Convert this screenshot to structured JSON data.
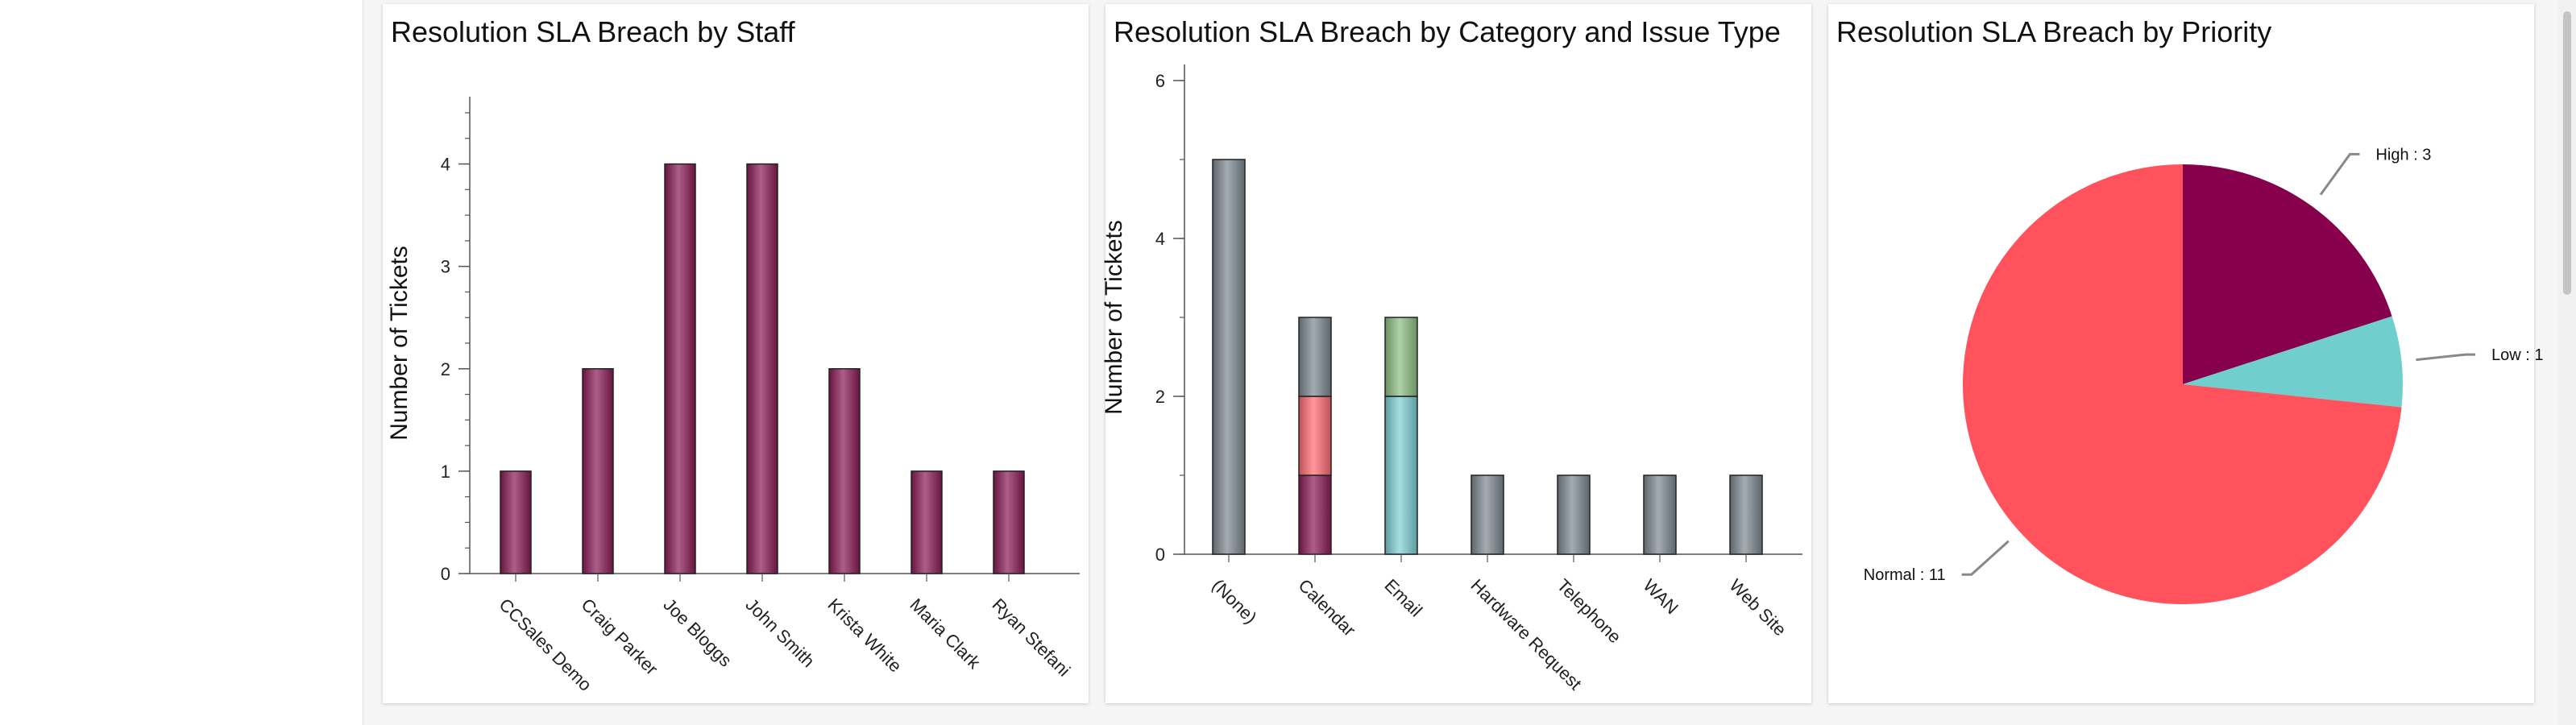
{
  "chart_data": [
    {
      "type": "bar",
      "title": "Resolution SLA Breach by Staff",
      "ylabel": "Number of Tickets",
      "ylim": [
        0,
        4.5
      ],
      "yticks": [
        0,
        1,
        2,
        3,
        4
      ],
      "grid": false,
      "color": "#8a1a55",
      "categories": [
        "CCSales Demo",
        "Craig Parker",
        "Joe Bloggs",
        "John Smith",
        "Krista White",
        "Maria Clark",
        "Ryan Stefani"
      ],
      "values": [
        1,
        2,
        4,
        4,
        2,
        1,
        1
      ]
    },
    {
      "type": "bar",
      "stacked": true,
      "title": "Resolution SLA Breach by Category and Issue Type",
      "ylabel": "Number of Tickets",
      "ylim": [
        0,
        6
      ],
      "yticks": [
        0,
        2,
        4,
        6
      ],
      "grid": false,
      "categories": [
        "(None)",
        "Calendar",
        "Email",
        "Hardware Request",
        "Telephone",
        "WAN",
        "Web Site"
      ],
      "series": [
        {
          "color": "#8a1a55",
          "values": [
            0,
            1,
            0,
            0,
            0,
            0,
            0
          ]
        },
        {
          "color": "#ff6b72",
          "values": [
            0,
            1,
            0,
            0,
            0,
            0,
            0
          ]
        },
        {
          "color": "#7dd0d6",
          "values": [
            0,
            0,
            2,
            0,
            0,
            0,
            0
          ]
        },
        {
          "color": "#8cbf82",
          "values": [
            0,
            0,
            1,
            0,
            0,
            0,
            0
          ]
        },
        {
          "color": "#7d8891",
          "values": [
            5,
            1,
            0,
            1,
            1,
            1,
            1
          ]
        }
      ]
    },
    {
      "type": "pie",
      "title": "Resolution SLA Breach by Priority",
      "slices": [
        {
          "label": "High : 3",
          "value": 3,
          "color": "#86004b"
        },
        {
          "label": "Low : 1",
          "value": 1,
          "color": "#70cfcc"
        },
        {
          "label": "Normal : 11",
          "value": 11,
          "color": "#ff525c"
        }
      ]
    }
  ]
}
